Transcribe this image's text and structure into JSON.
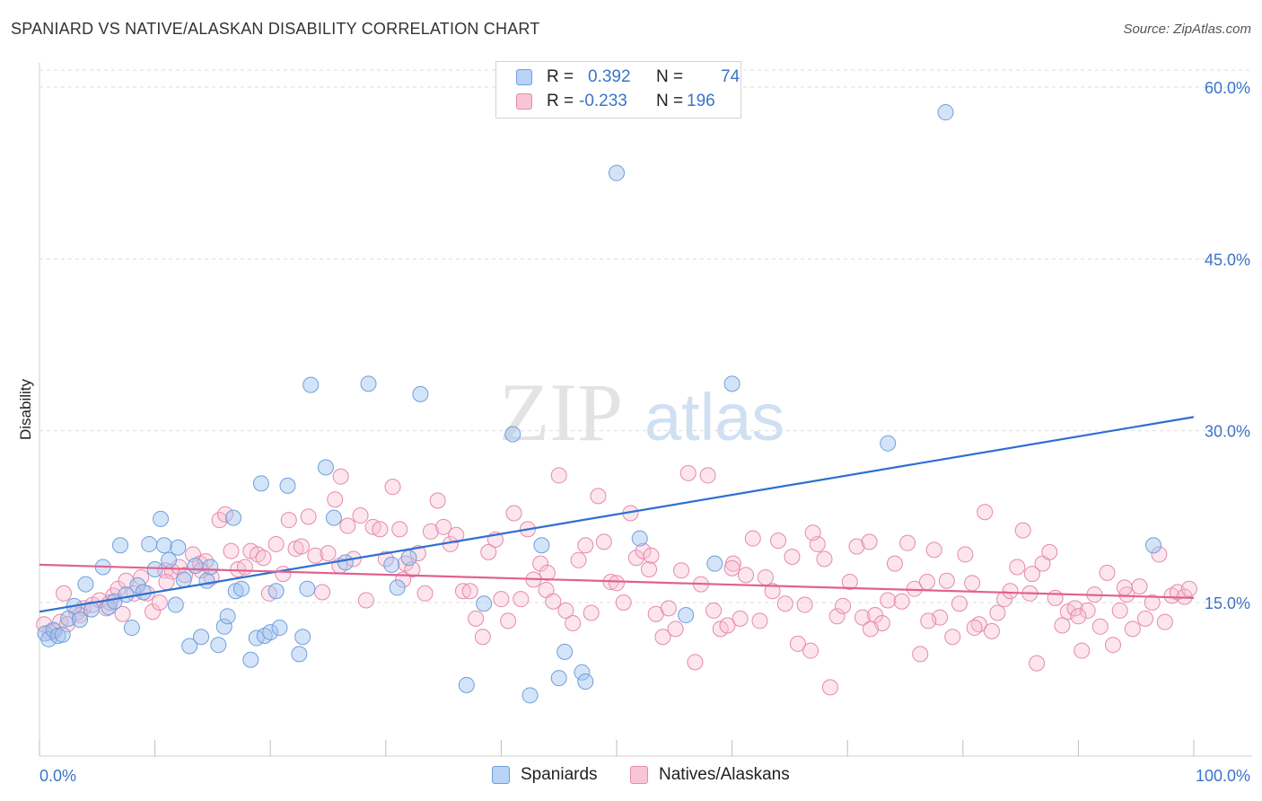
{
  "header": {
    "title": "SPANIARD VS NATIVE/ALASKAN DISABILITY CORRELATION CHART",
    "source": "Source: ZipAtlas.com"
  },
  "legend": {
    "series1": {
      "r_label": "R =",
      "r_value": "0.392",
      "n_label": "N =",
      "n_value": "74",
      "color": "#6f9fdc"
    },
    "series2": {
      "r_label": "R =",
      "r_value": "-0.233",
      "n_label": "N =",
      "n_value": "196",
      "color": "#e58aab"
    }
  },
  "watermark": {
    "zip": "ZIP",
    "atlas": "atlas"
  },
  "chart_data": {
    "type": "scatter",
    "title": "SPANIARD VS NATIVE/ALASKAN DISABILITY CORRELATION CHART",
    "xlabel": "",
    "ylabel": "Disability",
    "xlim": [
      0,
      100
    ],
    "ylim": [
      0,
      62
    ],
    "x_tick_labels": [
      "0.0%",
      "100.0%"
    ],
    "y_ticks": [
      15,
      30,
      45,
      60
    ],
    "y_tick_labels": [
      "15.0%",
      "30.0%",
      "45.0%",
      "60.0%"
    ],
    "grid": true,
    "legend_position": "top-center",
    "series": [
      {
        "name": "Spaniards",
        "color": "#6f9fdc",
        "trend": {
          "x": [
            0,
            100
          ],
          "y": [
            14.2,
            31.2
          ],
          "color": "#2e6fd1"
        },
        "points": [
          [
            0.5,
            12.3
          ],
          [
            0.8,
            11.8
          ],
          [
            1.2,
            12.6
          ],
          [
            1.6,
            12.1
          ],
          [
            2.0,
            12.2
          ],
          [
            2.5,
            13.6
          ],
          [
            3.0,
            14.7
          ],
          [
            3.5,
            13.5
          ],
          [
            4.0,
            16.6
          ],
          [
            4.5,
            14.4
          ],
          [
            5.5,
            18.1
          ],
          [
            6.0,
            14.6
          ],
          [
            6.5,
            15.1
          ],
          [
            7.0,
            20.0
          ],
          [
            7.5,
            15.7
          ],
          [
            8.0,
            12.8
          ],
          [
            8.5,
            16.5
          ],
          [
            9.0,
            15.9
          ],
          [
            9.5,
            20.1
          ],
          [
            10.0,
            17.9
          ],
          [
            10.5,
            22.3
          ],
          [
            10.8,
            20.0
          ],
          [
            11.2,
            18.7
          ],
          [
            11.8,
            14.8
          ],
          [
            12.0,
            19.8
          ],
          [
            12.5,
            17.0
          ],
          [
            13.0,
            11.2
          ],
          [
            13.5,
            18.2
          ],
          [
            14.0,
            12.0
          ],
          [
            14.5,
            16.9
          ],
          [
            14.8,
            18.1
          ],
          [
            15.5,
            11.3
          ],
          [
            16.0,
            12.9
          ],
          [
            16.3,
            13.8
          ],
          [
            16.8,
            22.4
          ],
          [
            17.0,
            16.0
          ],
          [
            17.5,
            16.2
          ],
          [
            18.3,
            10.0
          ],
          [
            18.8,
            11.9
          ],
          [
            19.2,
            25.4
          ],
          [
            19.5,
            12.1
          ],
          [
            20.0,
            12.4
          ],
          [
            20.5,
            16.0
          ],
          [
            20.8,
            12.8
          ],
          [
            21.5,
            25.2
          ],
          [
            22.5,
            10.5
          ],
          [
            22.8,
            12.0
          ],
          [
            23.2,
            16.2
          ],
          [
            23.5,
            34.0
          ],
          [
            24.8,
            26.8
          ],
          [
            25.5,
            22.4
          ],
          [
            26.5,
            18.5
          ],
          [
            28.5,
            34.1
          ],
          [
            30.5,
            18.3
          ],
          [
            31.0,
            16.3
          ],
          [
            32.0,
            18.9
          ],
          [
            33.0,
            33.2
          ],
          [
            37.0,
            7.8
          ],
          [
            38.5,
            14.9
          ],
          [
            41.0,
            29.7
          ],
          [
            42.5,
            6.9
          ],
          [
            43.5,
            20.0
          ],
          [
            45.0,
            8.4
          ],
          [
            45.5,
            10.7
          ],
          [
            47.0,
            8.9
          ],
          [
            47.3,
            8.1
          ],
          [
            50.0,
            52.5
          ],
          [
            52.0,
            20.6
          ],
          [
            56.0,
            13.9
          ],
          [
            58.5,
            18.4
          ],
          [
            60.0,
            34.1
          ],
          [
            73.5,
            28.9
          ],
          [
            78.5,
            57.8
          ],
          [
            96.5,
            20.0
          ]
        ]
      },
      {
        "name": "Natives/Alaskans",
        "color": "#e58aab",
        "trend": {
          "x": [
            0,
            100
          ],
          "y": [
            18.3,
            15.4
          ],
          "color": "#e0628f"
        },
        "points": [
          [
            0.4,
            13.1
          ],
          [
            0.9,
            12.4
          ],
          [
            1.3,
            12.5
          ],
          [
            1.8,
            13.3
          ],
          [
            2.4,
            13.1
          ],
          [
            3.2,
            14.1
          ],
          [
            3.8,
            14.5
          ],
          [
            4.6,
            14.8
          ],
          [
            5.2,
            15.2
          ],
          [
            5.8,
            14.5
          ],
          [
            6.4,
            15.6
          ],
          [
            6.8,
            16.2
          ],
          [
            7.5,
            16.9
          ],
          [
            8.2,
            15.8
          ],
          [
            8.8,
            17.2
          ],
          [
            9.3,
            15.8
          ],
          [
            9.8,
            14.2
          ],
          [
            10.4,
            15.0
          ],
          [
            10.9,
            17.8
          ],
          [
            11.5,
            17.7
          ],
          [
            12.1,
            18.1
          ],
          [
            12.6,
            17.4
          ],
          [
            13.3,
            19.2
          ],
          [
            13.9,
            18.4
          ],
          [
            14.4,
            18.6
          ],
          [
            14.9,
            17.2
          ],
          [
            15.6,
            22.2
          ],
          [
            16.1,
            22.7
          ],
          [
            16.6,
            19.5
          ],
          [
            17.2,
            17.9
          ],
          [
            17.8,
            18.1
          ],
          [
            18.3,
            19.5
          ],
          [
            18.9,
            19.2
          ],
          [
            19.4,
            18.9
          ],
          [
            19.9,
            15.8
          ],
          [
            20.5,
            20.1
          ],
          [
            21.1,
            17.5
          ],
          [
            21.6,
            22.2
          ],
          [
            22.2,
            19.7
          ],
          [
            22.7,
            19.9
          ],
          [
            23.3,
            22.5
          ],
          [
            23.9,
            19.1
          ],
          [
            24.5,
            15.9
          ],
          [
            25.0,
            19.3
          ],
          [
            25.6,
            24.0
          ],
          [
            26.1,
            26.0
          ],
          [
            26.7,
            21.7
          ],
          [
            27.2,
            18.8
          ],
          [
            27.8,
            22.6
          ],
          [
            28.3,
            15.2
          ],
          [
            28.9,
            21.6
          ],
          [
            29.5,
            21.4
          ],
          [
            30.0,
            18.8
          ],
          [
            30.6,
            25.1
          ],
          [
            31.2,
            21.4
          ],
          [
            31.7,
            18.4
          ],
          [
            32.3,
            17.9
          ],
          [
            32.8,
            19.3
          ],
          [
            33.4,
            15.8
          ],
          [
            33.9,
            21.2
          ],
          [
            34.5,
            23.9
          ],
          [
            35.0,
            21.6
          ],
          [
            35.6,
            20.1
          ],
          [
            36.1,
            20.9
          ],
          [
            36.7,
            16.0
          ],
          [
            37.3,
            16.0
          ],
          [
            37.8,
            13.6
          ],
          [
            38.4,
            12.0
          ],
          [
            38.9,
            19.4
          ],
          [
            39.5,
            20.5
          ],
          [
            40.0,
            15.3
          ],
          [
            40.6,
            13.4
          ],
          [
            41.1,
            22.8
          ],
          [
            41.7,
            15.3
          ],
          [
            42.3,
            21.4
          ],
          [
            42.8,
            17.0
          ],
          [
            43.4,
            18.4
          ],
          [
            43.9,
            16.1
          ],
          [
            44.5,
            15.1
          ],
          [
            45.0,
            26.1
          ],
          [
            45.6,
            14.3
          ],
          [
            46.2,
            13.2
          ],
          [
            46.7,
            18.7
          ],
          [
            47.3,
            20.0
          ],
          [
            47.8,
            14.1
          ],
          [
            48.4,
            24.3
          ],
          [
            48.9,
            20.3
          ],
          [
            49.5,
            16.8
          ],
          [
            50.0,
            16.7
          ],
          [
            50.6,
            15.0
          ],
          [
            51.2,
            22.8
          ],
          [
            51.7,
            18.9
          ],
          [
            52.3,
            19.5
          ],
          [
            52.8,
            17.9
          ],
          [
            53.4,
            14.0
          ],
          [
            54.0,
            12.0
          ],
          [
            54.5,
            14.5
          ],
          [
            55.1,
            12.7
          ],
          [
            55.6,
            17.8
          ],
          [
            56.2,
            26.3
          ],
          [
            56.8,
            9.8
          ],
          [
            57.3,
            16.6
          ],
          [
            57.9,
            26.1
          ],
          [
            58.4,
            14.3
          ],
          [
            59.0,
            12.7
          ],
          [
            59.6,
            13.0
          ],
          [
            60.1,
            18.4
          ],
          [
            60.7,
            13.6
          ],
          [
            61.2,
            17.4
          ],
          [
            61.8,
            20.6
          ],
          [
            62.4,
            13.4
          ],
          [
            62.9,
            17.2
          ],
          [
            63.5,
            16.0
          ],
          [
            64.0,
            20.4
          ],
          [
            64.6,
            14.9
          ],
          [
            65.2,
            19.0
          ],
          [
            65.7,
            11.4
          ],
          [
            66.3,
            14.8
          ],
          [
            66.8,
            10.8
          ],
          [
            67.4,
            20.1
          ],
          [
            68.0,
            18.8
          ],
          [
            68.5,
            7.6
          ],
          [
            69.1,
            13.8
          ],
          [
            69.6,
            14.7
          ],
          [
            70.2,
            16.8
          ],
          [
            70.8,
            19.9
          ],
          [
            71.3,
            13.7
          ],
          [
            71.9,
            20.3
          ],
          [
            72.4,
            13.9
          ],
          [
            73.0,
            13.2
          ],
          [
            73.5,
            15.2
          ],
          [
            74.1,
            18.4
          ],
          [
            74.7,
            15.1
          ],
          [
            75.2,
            20.2
          ],
          [
            75.8,
            16.2
          ],
          [
            76.3,
            10.5
          ],
          [
            76.9,
            16.8
          ],
          [
            77.5,
            19.6
          ],
          [
            78.0,
            13.7
          ],
          [
            78.6,
            16.9
          ],
          [
            79.1,
            12.0
          ],
          [
            79.7,
            14.9
          ],
          [
            80.2,
            19.2
          ],
          [
            80.8,
            16.7
          ],
          [
            81.4,
            13.1
          ],
          [
            81.9,
            22.9
          ],
          [
            82.5,
            12.5
          ],
          [
            83.0,
            14.1
          ],
          [
            83.6,
            15.3
          ],
          [
            84.1,
            16.0
          ],
          [
            84.7,
            18.1
          ],
          [
            85.2,
            21.3
          ],
          [
            85.8,
            15.8
          ],
          [
            86.4,
            9.7
          ],
          [
            86.9,
            18.4
          ],
          [
            87.5,
            19.4
          ],
          [
            88.0,
            15.4
          ],
          [
            88.6,
            13.0
          ],
          [
            89.1,
            14.2
          ],
          [
            89.7,
            14.5
          ],
          [
            90.3,
            10.8
          ],
          [
            90.8,
            14.3
          ],
          [
            91.4,
            15.7
          ],
          [
            91.9,
            12.9
          ],
          [
            92.5,
            17.6
          ],
          [
            93.0,
            11.3
          ],
          [
            93.6,
            14.3
          ],
          [
            94.2,
            15.7
          ],
          [
            94.7,
            12.7
          ],
          [
            95.3,
            16.4
          ],
          [
            95.8,
            13.6
          ],
          [
            96.4,
            15.0
          ],
          [
            97.0,
            19.2
          ],
          [
            97.5,
            13.3
          ],
          [
            98.1,
            15.6
          ],
          [
            98.6,
            15.9
          ],
          [
            99.2,
            15.5
          ],
          [
            99.6,
            16.2
          ],
          [
            2.1,
            15.8
          ],
          [
            3.5,
            13.9
          ],
          [
            6.1,
            15.0
          ],
          [
            7.2,
            14.0
          ],
          [
            11.0,
            16.8
          ],
          [
            14.0,
            17.8
          ],
          [
            26.0,
            18.2
          ],
          [
            31.5,
            17.0
          ],
          [
            44.0,
            17.6
          ],
          [
            53.0,
            19.1
          ],
          [
            60.0,
            18.0
          ],
          [
            67.0,
            21.1
          ],
          [
            72.0,
            12.7
          ],
          [
            77.0,
            13.4
          ],
          [
            81.0,
            12.8
          ],
          [
            86.0,
            17.5
          ],
          [
            90.0,
            13.8
          ],
          [
            94.0,
            16.3
          ]
        ]
      }
    ]
  }
}
